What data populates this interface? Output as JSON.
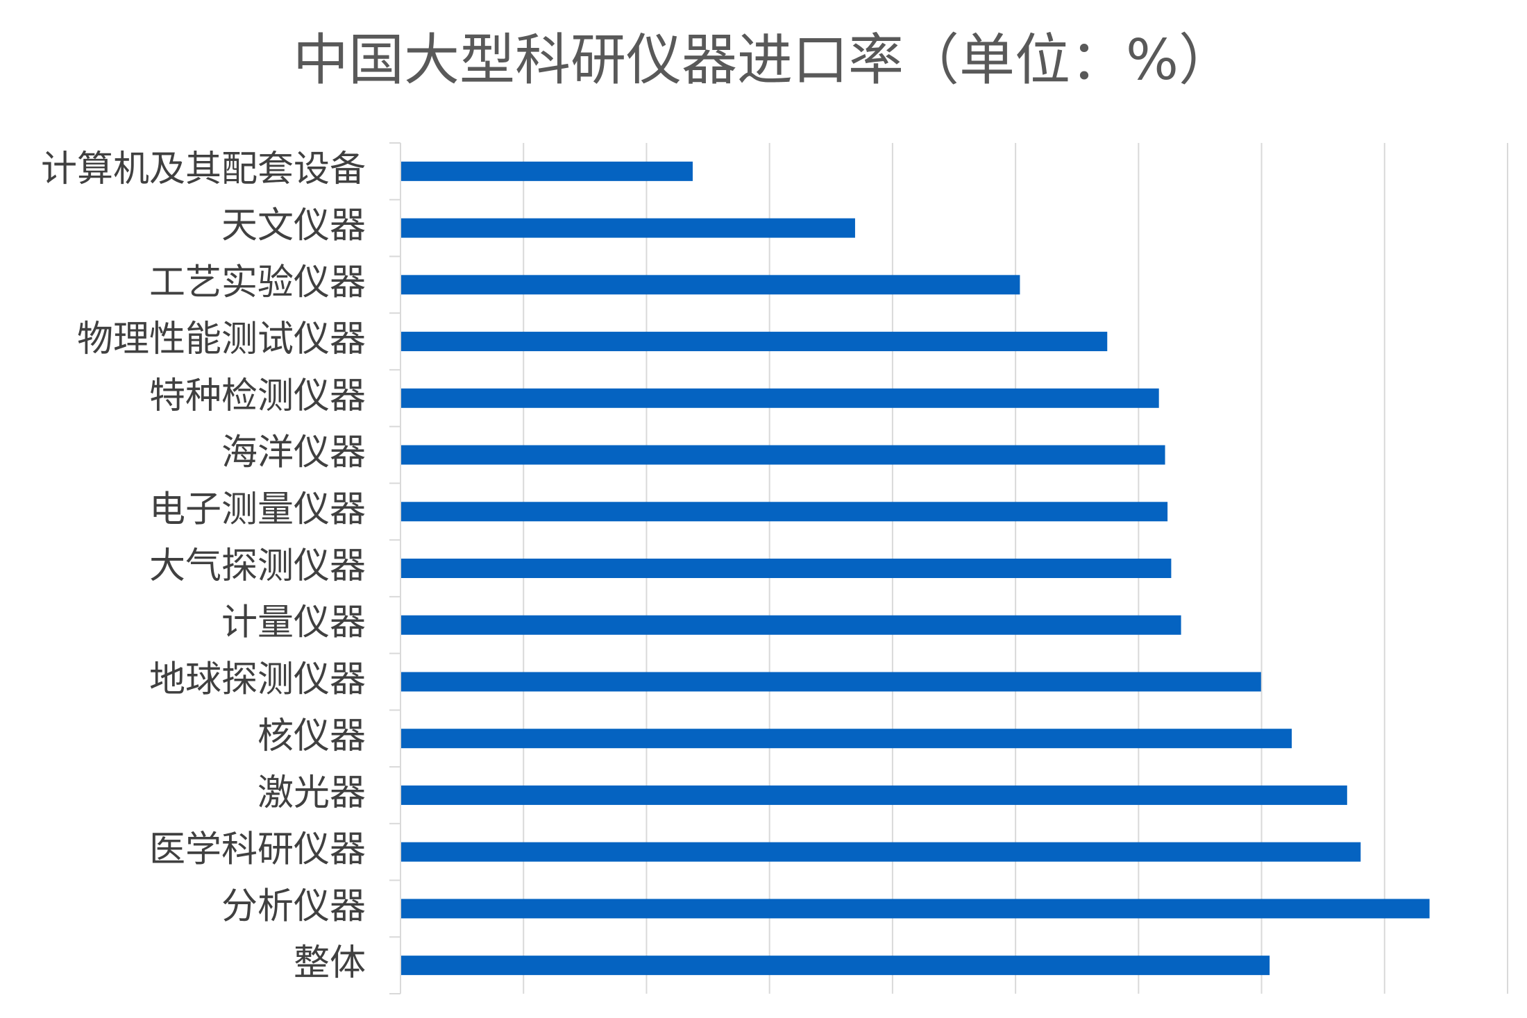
{
  "chart_data": {
    "type": "barh",
    "title": "中国大型科研仪器进口率（单位：%）",
    "categories": [
      "计算机及其配套设备",
      "天文仪器",
      "工艺实验仪器",
      "物理性能测试仪器",
      "特种检测仪器",
      "海洋仪器",
      "电子测量仪器",
      "大气探测仪器",
      "计量仪器",
      "地球探测仪器",
      "核仪器",
      "激光器",
      "医学科研仪器",
      "分析仪器",
      "整体"
    ],
    "values": [
      23.7,
      36.9,
      50.3,
      57.4,
      61.6,
      62.1,
      62.3,
      62.6,
      63.4,
      69.9,
      72.4,
      76.9,
      78.0,
      83.6,
      70.6
    ],
    "color": "#0563c1",
    "xlim": [
      0,
      90
    ],
    "xticks": [
      0,
      10,
      20,
      30,
      40,
      50,
      60,
      70,
      80,
      90
    ],
    "grid": true
  }
}
